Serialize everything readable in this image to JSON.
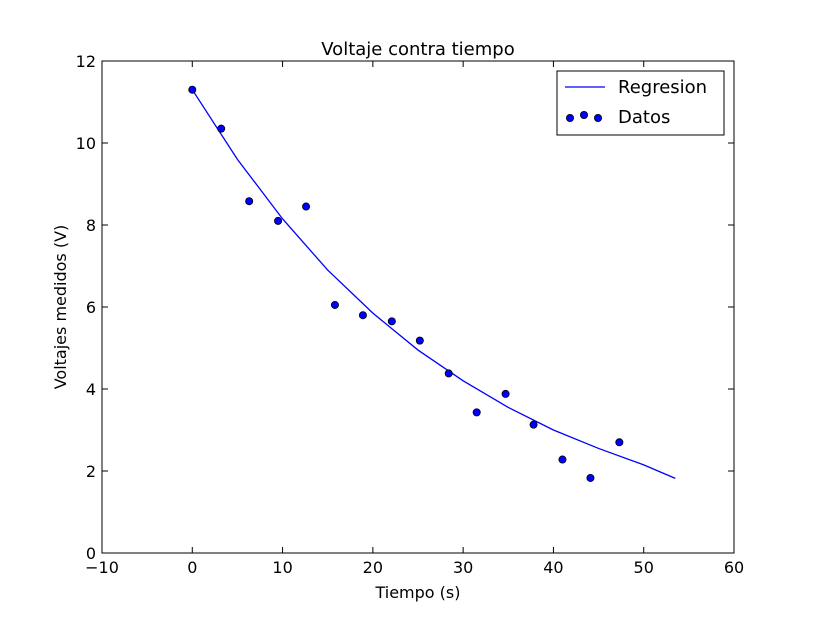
{
  "chart_data": {
    "type": "scatter",
    "title": "Voltaje contra tiempo",
    "xlabel": "Tiempo (s)",
    "ylabel": "Voltajes medidos (V)",
    "xlim": [
      -10,
      60
    ],
    "ylim": [
      0,
      12
    ],
    "x_ticks": [
      -10,
      0,
      10,
      20,
      30,
      40,
      50,
      60
    ],
    "y_ticks": [
      0,
      2,
      4,
      6,
      8,
      10,
      12
    ],
    "x_tick_labels": [
      "−10",
      "0",
      "10",
      "20",
      "30",
      "40",
      "50",
      "60"
    ],
    "y_tick_labels": [
      "0",
      "2",
      "4",
      "6",
      "8",
      "10",
      "12"
    ],
    "grid": false,
    "legend_position": "top-right",
    "series": [
      {
        "name": "Regresion",
        "kind": "line",
        "color": "#0000ff",
        "x": [
          0,
          5,
          10,
          15,
          20,
          25,
          30,
          35,
          40,
          45,
          50,
          53.5
        ],
        "y": [
          11.3,
          9.6,
          8.15,
          6.9,
          5.85,
          4.95,
          4.2,
          3.55,
          3.0,
          2.55,
          2.15,
          1.82
        ]
      },
      {
        "name": "Datos",
        "kind": "scatter",
        "color": "#0000ff",
        "x": [
          0,
          3.2,
          6.3,
          9.5,
          12.6,
          15.8,
          18.9,
          22.1,
          25.2,
          28.4,
          31.5,
          34.7,
          37.8,
          41.0,
          44.1,
          47.3
        ],
        "y": [
          11.3,
          10.35,
          8.58,
          8.1,
          8.45,
          6.05,
          5.8,
          5.65,
          5.18,
          4.38,
          3.43,
          3.88,
          3.13,
          2.28,
          1.83,
          2.7
        ]
      }
    ]
  }
}
